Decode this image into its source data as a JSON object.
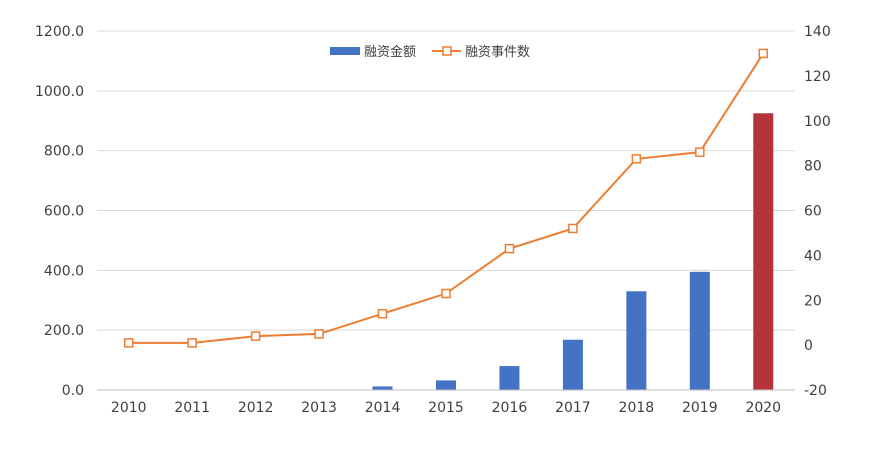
{
  "chart_data": {
    "type": "bar",
    "categories": [
      "2010",
      "2011",
      "2012",
      "2013",
      "2014",
      "2015",
      "2016",
      "2017",
      "2018",
      "2019",
      "2020"
    ],
    "y_left": {
      "ylim": [
        0,
        1200
      ],
      "ticks": [
        "0.0",
        "200.0",
        "400.0",
        "600.0",
        "800.0",
        "1000.0",
        "1200.0"
      ]
    },
    "y_right": {
      "ylim": [
        -20,
        140
      ],
      "ticks": [
        "-20",
        "0",
        "20",
        "40",
        "60",
        "80",
        "100",
        "120",
        "140"
      ]
    },
    "series": [
      {
        "name": "融资金额",
        "type": "bar",
        "axis": "left",
        "color": "#4472C4",
        "highlight_color": "#B4343A",
        "highlight_index": 10,
        "values": [
          0,
          0,
          0,
          0,
          12,
          32,
          80,
          168,
          330,
          395,
          925
        ]
      },
      {
        "name": "融资事件数",
        "type": "line",
        "axis": "right",
        "color": "#ED7D31",
        "marker": "hollow-square",
        "values": [
          1,
          1,
          4,
          5,
          14,
          23,
          43,
          52,
          83,
          86,
          130
        ]
      }
    ],
    "grid": true,
    "legend_position": "top-center"
  }
}
